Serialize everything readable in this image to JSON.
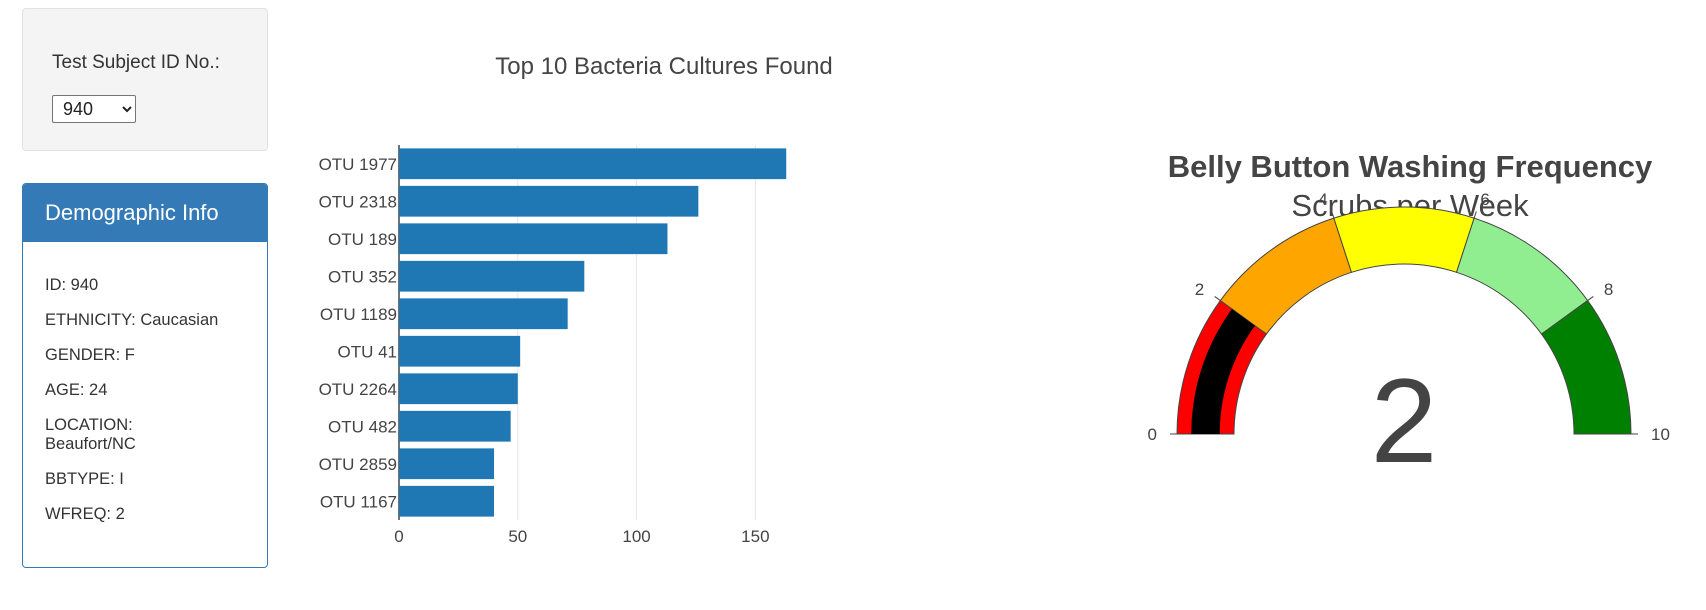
{
  "selector": {
    "label": "Test Subject ID No.:",
    "selected": "940"
  },
  "demographic": {
    "title": "Demographic Info",
    "rows": [
      "ID: 940",
      "ETHNICITY: Caucasian",
      "GENDER: F",
      "AGE: 24",
      "LOCATION: Beaufort/NC",
      "BBTYPE: I",
      "WFREQ: 2"
    ]
  },
  "chart_data": [
    {
      "type": "bar",
      "orientation": "horizontal",
      "title": "Top 10 Bacteria Cultures Found",
      "categories": [
        "OTU 1977",
        "OTU 2318",
        "OTU 189",
        "OTU 352",
        "OTU 1189",
        "OTU 41",
        "OTU 2264",
        "OTU 482",
        "OTU 2859",
        "OTU 1167"
      ],
      "values": [
        163,
        126,
        113,
        78,
        71,
        51,
        50,
        47,
        40,
        40
      ],
      "xlim": [
        0,
        165
      ],
      "xticks": [
        0,
        50,
        100,
        150
      ],
      "bar_color": "#1f77b4",
      "grid": true
    },
    {
      "type": "gauge",
      "title": "Belly Button Washing Frequency",
      "subtitle": "Scrubs per Week",
      "value": 2,
      "range": [
        0,
        10
      ],
      "ticks": [
        0,
        2,
        4,
        6,
        8,
        10
      ],
      "steps": [
        {
          "range": [
            0,
            2
          ],
          "color": "#ff0000"
        },
        {
          "range": [
            2,
            4
          ],
          "color": "#ffa500"
        },
        {
          "range": [
            4,
            6
          ],
          "color": "#ffff00"
        },
        {
          "range": [
            6,
            8
          ],
          "color": "#90ee90"
        },
        {
          "range": [
            8,
            10
          ],
          "color": "#008000"
        }
      ],
      "bar_color": "#000000"
    }
  ]
}
